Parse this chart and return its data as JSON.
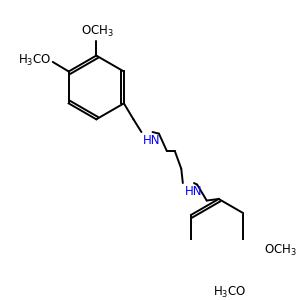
{
  "bg_color": "#FFFFFF",
  "bond_color": "#000000",
  "nh_color": "#0000FF",
  "bond_lw": 1.4,
  "dbo": 0.012,
  "fig_size": [
    3.0,
    3.0
  ],
  "dpi": 100,
  "font_size": 8.5
}
